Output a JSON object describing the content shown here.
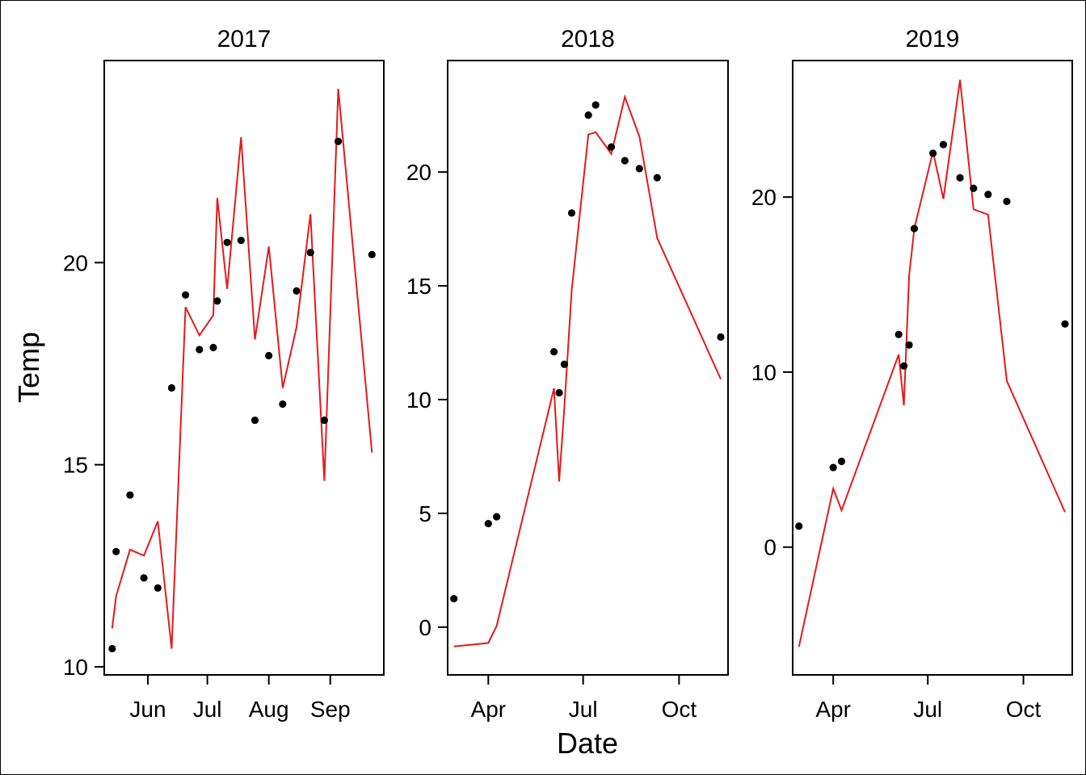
{
  "chart_data": {
    "type": "scatter",
    "xlabel": "Date",
    "ylabel": "Temp",
    "colors": {
      "points": "#000000",
      "line": "#e41a1c"
    },
    "panels": [
      {
        "title": "2017",
        "xlim": [
          "2017-05-10",
          "2017-09-28"
        ],
        "ylim": [
          9.8,
          25.0
        ],
        "x_ticks": [
          {
            "label": "Jun",
            "date": "2017-06-01"
          },
          {
            "label": "Jul",
            "date": "2017-07-01"
          },
          {
            "label": "Aug",
            "date": "2017-08-01"
          },
          {
            "label": "Sep",
            "date": "2017-09-01"
          }
        ],
        "y_ticks": [
          {
            "label": "10",
            "value": 10
          },
          {
            "label": "15",
            "value": 15
          },
          {
            "label": "20",
            "value": 20
          }
        ],
        "observed": [
          [
            "2017-05-14",
            10.45
          ],
          [
            "2017-05-16",
            12.85
          ],
          [
            "2017-05-23",
            14.25
          ],
          [
            "2017-05-30",
            12.2
          ],
          [
            "2017-06-06",
            11.95
          ],
          [
            "2017-06-13",
            16.9
          ],
          [
            "2017-06-20",
            19.2
          ],
          [
            "2017-06-27",
            17.85
          ],
          [
            "2017-07-04",
            17.9
          ],
          [
            "2017-07-06",
            19.05
          ],
          [
            "2017-07-11",
            20.5
          ],
          [
            "2017-07-18",
            20.55
          ],
          [
            "2017-07-25",
            16.1
          ],
          [
            "2017-08-01",
            17.7
          ],
          [
            "2017-08-08",
            16.5
          ],
          [
            "2017-08-15",
            19.3
          ],
          [
            "2017-08-22",
            20.25
          ],
          [
            "2017-08-29",
            16.1
          ],
          [
            "2017-09-05",
            23.0
          ],
          [
            "2017-09-22",
            20.2
          ]
        ],
        "fitted": [
          [
            "2017-05-14",
            10.95
          ],
          [
            "2017-05-16",
            11.75
          ],
          [
            "2017-05-23",
            12.9
          ],
          [
            "2017-05-30",
            12.75
          ],
          [
            "2017-06-06",
            13.6
          ],
          [
            "2017-06-13",
            10.45
          ],
          [
            "2017-06-20",
            18.9
          ],
          [
            "2017-06-27",
            18.2
          ],
          [
            "2017-07-04",
            18.7
          ],
          [
            "2017-07-06",
            21.6
          ],
          [
            "2017-07-11",
            19.35
          ],
          [
            "2017-07-18",
            23.1
          ],
          [
            "2017-07-25",
            18.1
          ],
          [
            "2017-08-01",
            20.4
          ],
          [
            "2017-08-08",
            16.9
          ],
          [
            "2017-08-15",
            18.4
          ],
          [
            "2017-08-22",
            21.2
          ],
          [
            "2017-08-29",
            14.6
          ],
          [
            "2017-09-05",
            24.3
          ],
          [
            "2017-09-22",
            15.3
          ]
        ]
      },
      {
        "title": "2018",
        "xlim": [
          "2018-02-21",
          "2018-11-17"
        ],
        "ylim": [
          -2.1,
          24.9
        ],
        "x_ticks": [
          {
            "label": "Apr",
            "date": "2018-04-01"
          },
          {
            "label": "Jul",
            "date": "2018-07-01"
          },
          {
            "label": "Oct",
            "date": "2018-10-01"
          }
        ],
        "y_ticks": [
          {
            "label": "0",
            "value": 0
          },
          {
            "label": "5",
            "value": 5
          },
          {
            "label": "10",
            "value": 10
          },
          {
            "label": "15",
            "value": 15
          },
          {
            "label": "20",
            "value": 20
          }
        ],
        "observed": [
          [
            "2018-02-27",
            1.25
          ],
          [
            "2018-04-01",
            4.55
          ],
          [
            "2018-04-09",
            4.85
          ],
          [
            "2018-06-03",
            12.1
          ],
          [
            "2018-06-08",
            10.3
          ],
          [
            "2018-06-13",
            11.55
          ],
          [
            "2018-06-20",
            18.2
          ],
          [
            "2018-07-06",
            22.5
          ],
          [
            "2018-07-13",
            22.95
          ],
          [
            "2018-07-28",
            21.1
          ],
          [
            "2018-08-10",
            20.5
          ],
          [
            "2018-08-24",
            20.15
          ],
          [
            "2018-09-10",
            19.75
          ],
          [
            "2018-11-10",
            12.75
          ]
        ],
        "fitted": [
          [
            "2018-02-27",
            -0.85
          ],
          [
            "2018-04-01",
            -0.7
          ],
          [
            "2018-04-09",
            0.05
          ],
          [
            "2018-06-03",
            10.5
          ],
          [
            "2018-06-08",
            6.4
          ],
          [
            "2018-06-13",
            9.7
          ],
          [
            "2018-06-20",
            14.8
          ],
          [
            "2018-07-06",
            21.65
          ],
          [
            "2018-07-13",
            21.75
          ],
          [
            "2018-07-28",
            20.8
          ],
          [
            "2018-08-10",
            23.3
          ],
          [
            "2018-08-24",
            21.55
          ],
          [
            "2018-09-10",
            17.1
          ],
          [
            "2018-11-10",
            10.9
          ]
        ]
      },
      {
        "title": "2019",
        "xlim": [
          "2019-02-21",
          "2019-11-17"
        ],
        "ylim": [
          -7.3,
          27.8
        ],
        "x_ticks": [
          {
            "label": "Apr",
            "date": "2019-04-01"
          },
          {
            "label": "Jul",
            "date": "2019-07-01"
          },
          {
            "label": "Oct",
            "date": "2019-10-01"
          }
        ],
        "y_ticks": [
          {
            "label": "0",
            "value": 0
          },
          {
            "label": "10",
            "value": 10
          },
          {
            "label": "20",
            "value": 20
          }
        ],
        "observed": [
          [
            "2019-02-27",
            1.2
          ],
          [
            "2019-04-01",
            4.55
          ],
          [
            "2019-04-09",
            4.9
          ],
          [
            "2019-06-03",
            12.15
          ],
          [
            "2019-06-08",
            10.35
          ],
          [
            "2019-06-13",
            11.55
          ],
          [
            "2019-06-18",
            18.2
          ],
          [
            "2019-07-06",
            22.5
          ],
          [
            "2019-07-16",
            23.0
          ],
          [
            "2019-08-01",
            21.1
          ],
          [
            "2019-08-14",
            20.5
          ],
          [
            "2019-08-28",
            20.15
          ],
          [
            "2019-09-15",
            19.75
          ],
          [
            "2019-11-10",
            12.75
          ]
        ],
        "fitted": [
          [
            "2019-02-27",
            -5.7
          ],
          [
            "2019-04-01",
            3.35
          ],
          [
            "2019-04-09",
            2.1
          ],
          [
            "2019-06-03",
            11.0
          ],
          [
            "2019-06-08",
            8.1
          ],
          [
            "2019-06-13",
            15.5
          ],
          [
            "2019-06-18",
            18.2
          ],
          [
            "2019-07-06",
            22.6
          ],
          [
            "2019-07-16",
            19.9
          ],
          [
            "2019-08-01",
            26.7
          ],
          [
            "2019-08-14",
            19.3
          ],
          [
            "2019-08-28",
            19.0
          ],
          [
            "2019-09-15",
            9.5
          ],
          [
            "2019-11-10",
            2.0
          ]
        ]
      }
    ]
  }
}
